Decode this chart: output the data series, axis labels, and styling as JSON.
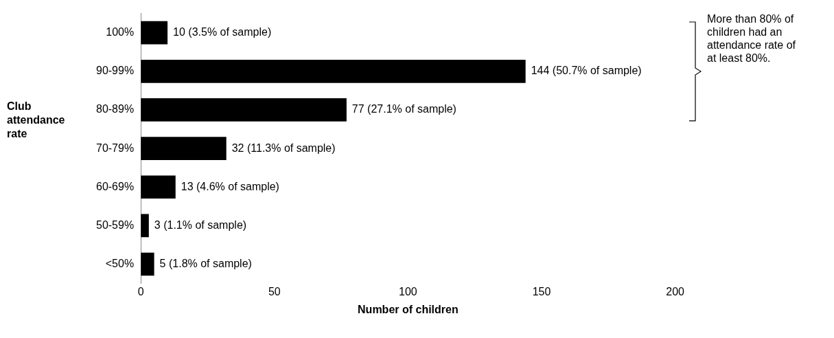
{
  "chart_data": {
    "type": "bar",
    "orientation": "horizontal",
    "categories": [
      "100%",
      "90-99%",
      "80-89%",
      "70-79%",
      "60-69%",
      "50-59%",
      "<50%"
    ],
    "values": [
      10,
      144,
      77,
      32,
      13,
      3,
      5
    ],
    "value_labels": [
      "10 (3.5% of sample)",
      "144 (50.7% of sample)",
      "77 (27.1% of sample)",
      "32 (11.3% of sample)",
      "13 (4.6% of sample)",
      "3 (1.1% of sample)",
      "5 (1.8% of sample)"
    ],
    "color": "#000000",
    "xlim": [
      0,
      200
    ],
    "xticks": [
      0,
      50,
      100,
      150,
      200
    ],
    "xlabel": "Number of children",
    "ylabel": "Club attendance rate",
    "annotations": [
      "More than 80% of children had an attendance rate of at least 80%."
    ]
  }
}
